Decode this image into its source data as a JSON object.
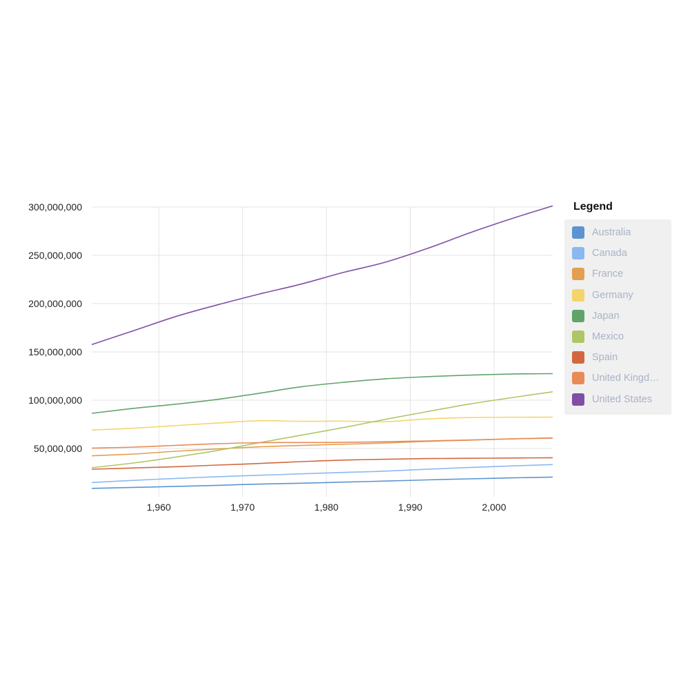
{
  "chart_data": {
    "type": "line",
    "title": "",
    "xlabel": "",
    "ylabel": "",
    "xlim": [
      1952,
      2007
    ],
    "ylim": [
      0,
      300000000
    ],
    "x_ticks": [
      1960,
      1970,
      1980,
      1990,
      2000
    ],
    "x_tick_labels": [
      "1,960",
      "1,970",
      "1,980",
      "1,990",
      "2,000"
    ],
    "y_ticks": [
      50000000,
      100000000,
      150000000,
      200000000,
      250000000,
      300000000
    ],
    "y_tick_labels": [
      "50,000,000",
      "100,000,000",
      "150,000,000",
      "200,000,000",
      "250,000,000",
      "300,000,000"
    ],
    "grid": true,
    "legend_position": "right",
    "legend_title": "Legend",
    "x": [
      1952,
      1957,
      1962,
      1967,
      1972,
      1977,
      1982,
      1987,
      1992,
      1997,
      2002,
      2007
    ],
    "series": [
      {
        "name": "Australia",
        "color": "#5b94d1",
        "values": [
          8691212,
          9712569,
          10794968,
          11872264,
          13177000,
          14074100,
          15184200,
          16257249,
          17481977,
          18565243,
          19546792,
          20434176
        ]
      },
      {
        "name": "Canada",
        "color": "#8ab8f0",
        "values": [
          14785584,
          17010154,
          18985849,
          20819767,
          22284500,
          23796400,
          25201900,
          26549700,
          28523502,
          30305843,
          31902268,
          33390141
        ]
      },
      {
        "name": "France",
        "color": "#e19f4f",
        "values": [
          42459667,
          44310863,
          47124000,
          49569000,
          51732000,
          53165019,
          54433565,
          55630100,
          57374179,
          58623428,
          59925035,
          61083916
        ]
      },
      {
        "name": "Germany",
        "color": "#f4d56b",
        "values": [
          69145952,
          71019069,
          73739117,
          76368453,
          78717088,
          78160773,
          78335266,
          77718298,
          80597764,
          82011073,
          82350671,
          82400996
        ]
      },
      {
        "name": "Japan",
        "color": "#62a36b",
        "values": [
          86459025,
          91563009,
          95831757,
          100825279,
          107188273,
          113872473,
          118454974,
          122091325,
          124329269,
          125956499,
          127065841,
          127467972
        ]
      },
      {
        "name": "Mexico",
        "color": "#aec666",
        "values": [
          30144317,
          35015548,
          41121485,
          47995559,
          55984294,
          63759976,
          71640904,
          80122492,
          88111030,
          95895146,
          102479927,
          108700891
        ]
      },
      {
        "name": "Spain",
        "color": "#d2673f",
        "values": [
          28549870,
          29841614,
          31158061,
          32850275,
          34513161,
          36439000,
          37983310,
          38880702,
          39549438,
          39855442,
          40152517,
          40448191
        ]
      },
      {
        "name": "United Kingd…",
        "color": "#e88b57",
        "values": [
          50430000,
          51430000,
          53292000,
          54959000,
          56079000,
          56179000,
          56339704,
          56981620,
          57866349,
          58808266,
          59912431,
          60776238
        ]
      },
      {
        "name": "United States",
        "color": "#7f4ea6",
        "values": [
          157553000,
          171984000,
          186538000,
          198712000,
          209896000,
          220239000,
          232187835,
          242803533,
          256894189,
          272911760,
          287675526,
          301139947
        ]
      }
    ]
  }
}
